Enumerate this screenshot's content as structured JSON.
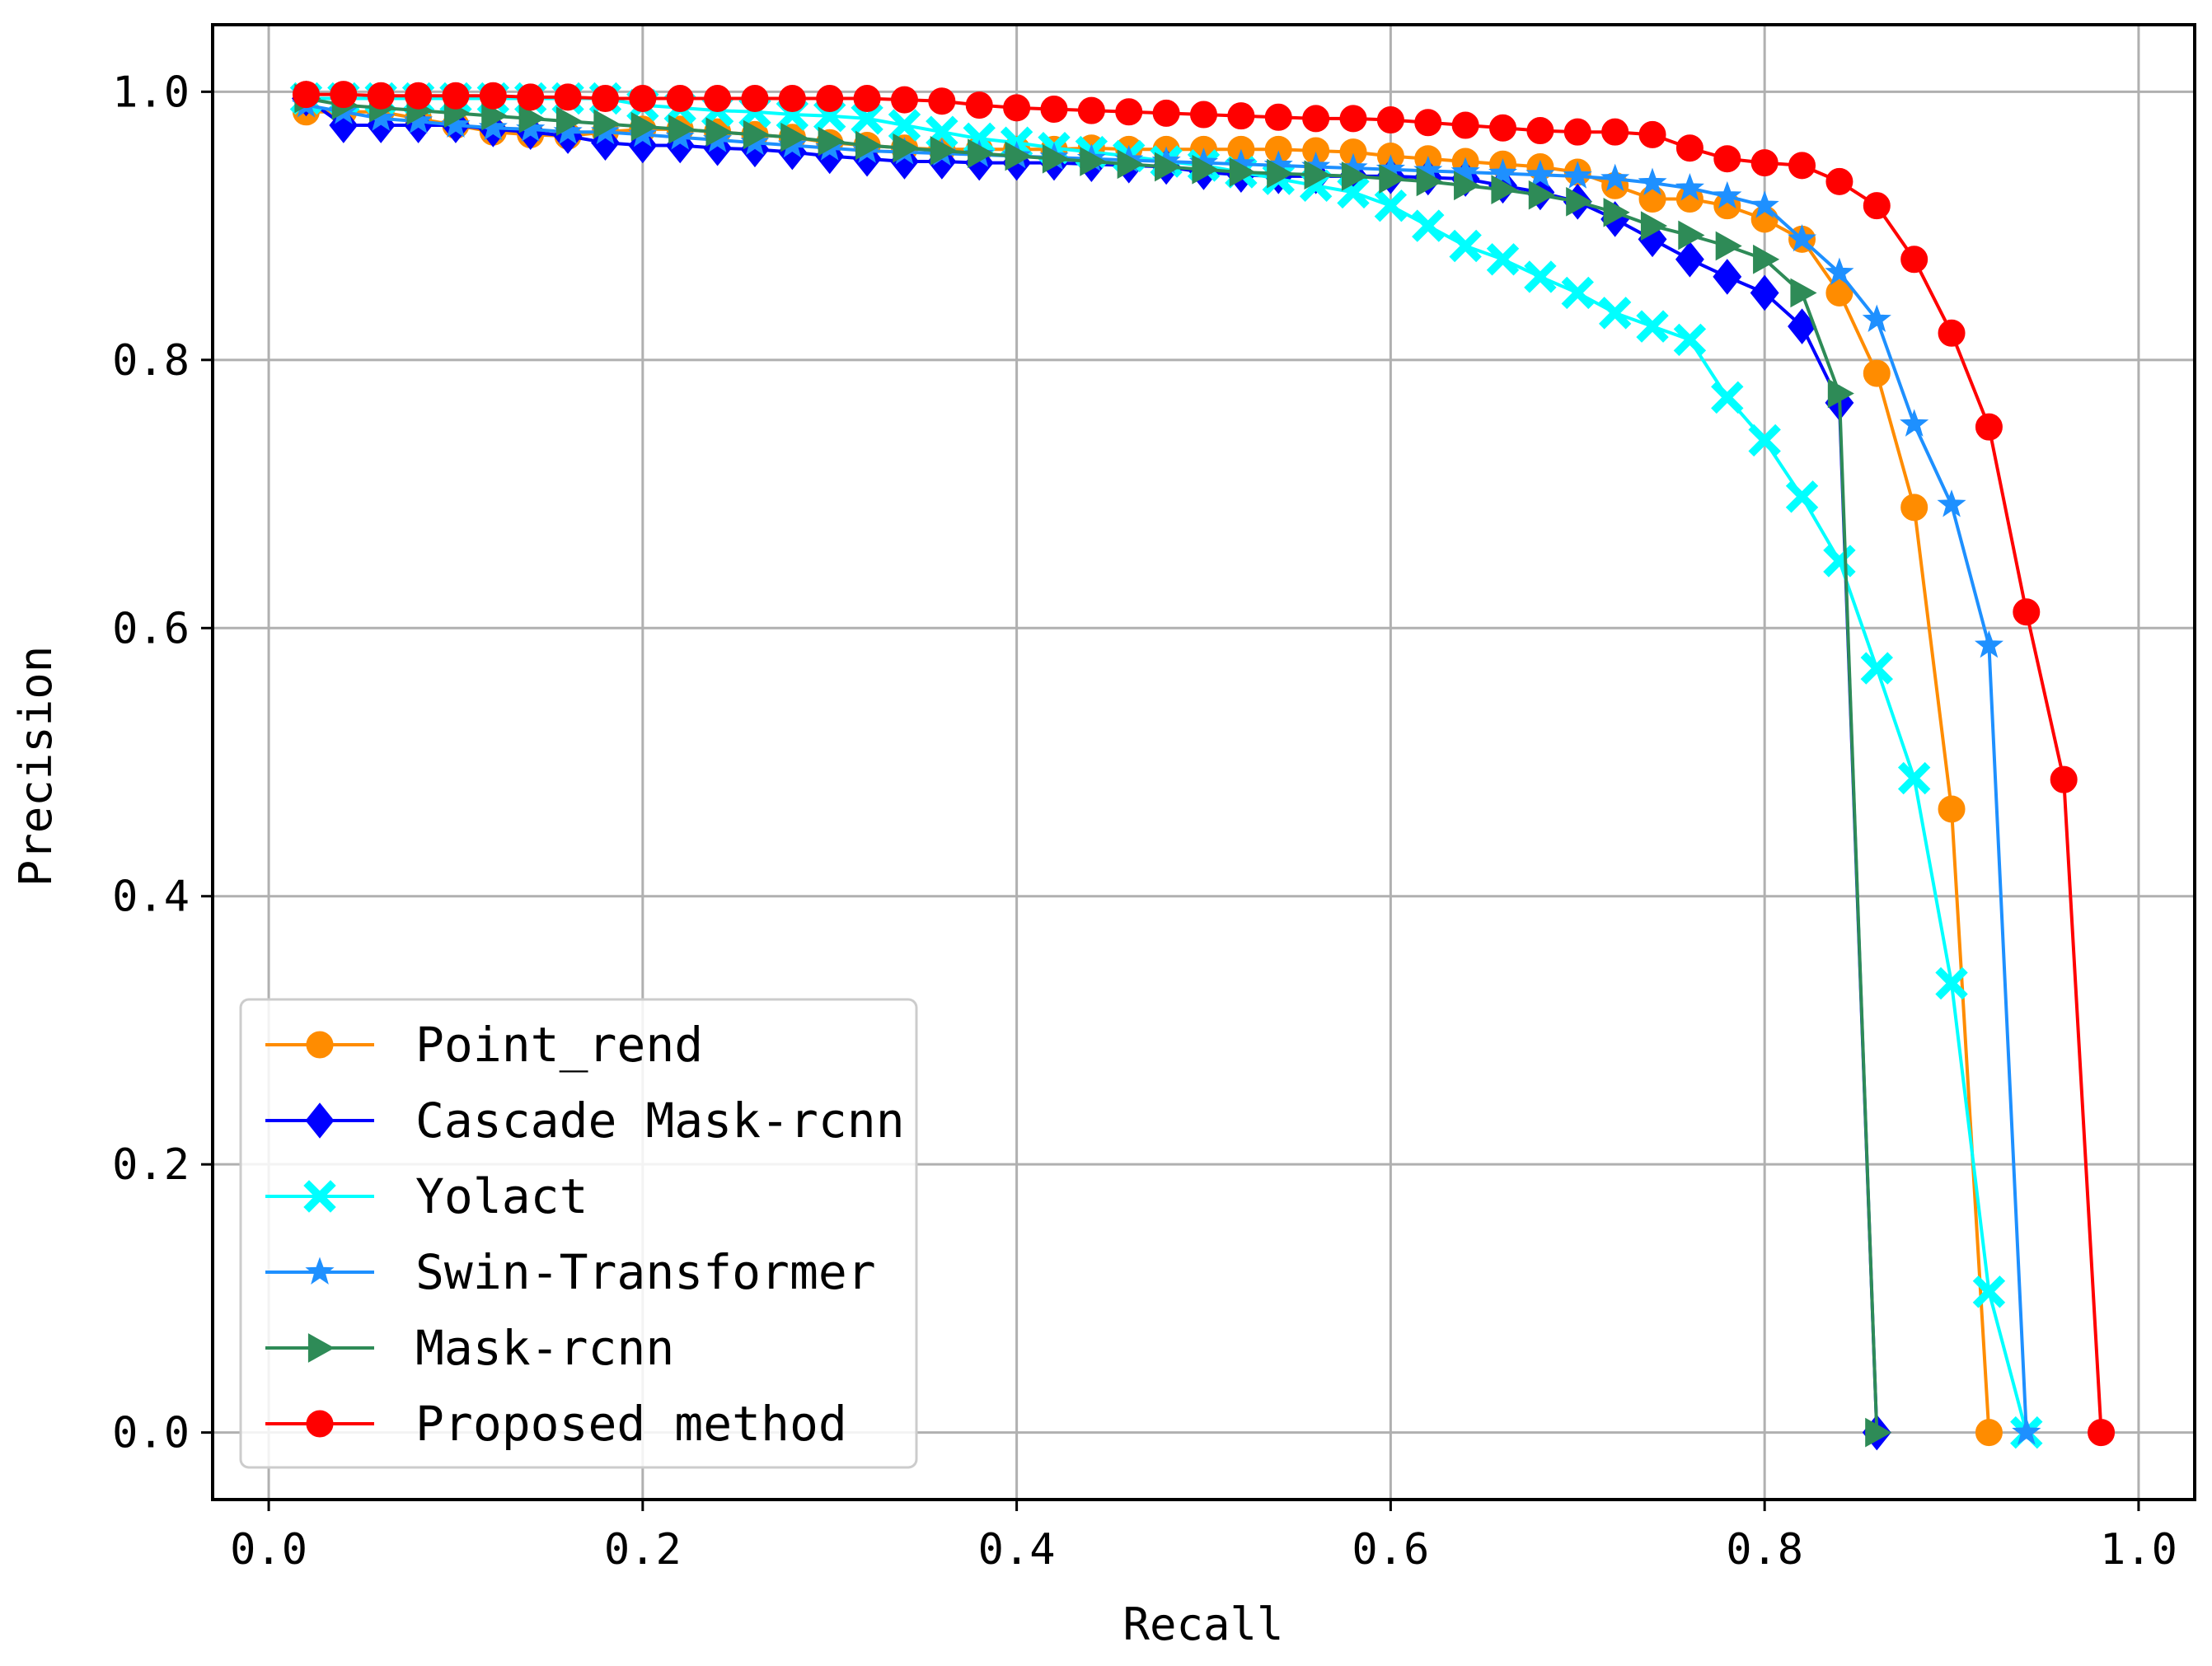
{
  "chart_data": {
    "type": "line",
    "title": "",
    "xlabel": "Recall",
    "ylabel": "Precision",
    "xlim": [
      -0.03,
      1.03
    ],
    "ylim": [
      -0.05,
      1.05
    ],
    "xticks": [
      0.0,
      0.2,
      0.4,
      0.6,
      0.8,
      1.0
    ],
    "yticks": [
      0.0,
      0.2,
      0.4,
      0.6,
      0.8,
      1.0
    ],
    "xtick_labels": [
      "0.0",
      "0.2",
      "0.4",
      "0.6",
      "0.8",
      "1.0"
    ],
    "ytick_labels": [
      "0.0",
      "0.2",
      "0.4",
      "0.6",
      "0.8",
      "1.0"
    ],
    "grid": true,
    "legend_position": "lower-left",
    "series": [
      {
        "name": "Point_rend",
        "color": "#ff8c00",
        "marker": "circle",
        "x": [
          0.02,
          0.04,
          0.06,
          0.08,
          0.1,
          0.12,
          0.14,
          0.16,
          0.18,
          0.2,
          0.22,
          0.24,
          0.26,
          0.28,
          0.3,
          0.32,
          0.34,
          0.36,
          0.38,
          0.4,
          0.42,
          0.44,
          0.46,
          0.48,
          0.5,
          0.52,
          0.54,
          0.56,
          0.58,
          0.6,
          0.62,
          0.64,
          0.66,
          0.68,
          0.7,
          0.72,
          0.74,
          0.76,
          0.78,
          0.8,
          0.82,
          0.84,
          0.86,
          0.88,
          0.9,
          0.92
        ],
        "y": [
          0.985,
          0.985,
          0.985,
          0.98,
          0.975,
          0.97,
          0.968,
          0.967,
          0.97,
          0.972,
          0.972,
          0.97,
          0.968,
          0.966,
          0.962,
          0.96,
          0.958,
          0.957,
          0.957,
          0.957,
          0.957,
          0.958,
          0.957,
          0.957,
          0.957,
          0.957,
          0.957,
          0.956,
          0.955,
          0.952,
          0.95,
          0.948,
          0.946,
          0.944,
          0.94,
          0.93,
          0.92,
          0.92,
          0.915,
          0.905,
          0.89,
          0.85,
          0.79,
          0.69,
          0.465,
          0.0
        ]
      },
      {
        "name": "Cascade Mask-rcnn",
        "color": "#0000ff",
        "marker": "diamond",
        "x": [
          0.02,
          0.04,
          0.06,
          0.08,
          0.1,
          0.12,
          0.14,
          0.16,
          0.18,
          0.2,
          0.22,
          0.24,
          0.26,
          0.28,
          0.3,
          0.32,
          0.34,
          0.36,
          0.38,
          0.4,
          0.42,
          0.44,
          0.46,
          0.48,
          0.5,
          0.52,
          0.54,
          0.56,
          0.58,
          0.6,
          0.62,
          0.64,
          0.66,
          0.68,
          0.7,
          0.72,
          0.74,
          0.76,
          0.78,
          0.8,
          0.82,
          0.84,
          0.86
        ],
        "y": [
          0.995,
          0.975,
          0.975,
          0.975,
          0.975,
          0.972,
          0.97,
          0.967,
          0.962,
          0.96,
          0.96,
          0.958,
          0.957,
          0.955,
          0.952,
          0.95,
          0.948,
          0.948,
          0.947,
          0.947,
          0.947,
          0.946,
          0.945,
          0.944,
          0.94,
          0.938,
          0.937,
          0.937,
          0.937,
          0.937,
          0.936,
          0.935,
          0.93,
          0.925,
          0.918,
          0.905,
          0.89,
          0.875,
          0.862,
          0.85,
          0.825,
          0.768,
          0.0
        ]
      },
      {
        "name": "Yolact",
        "color": "#00ffff",
        "marker": "x",
        "x": [
          0.02,
          0.04,
          0.06,
          0.08,
          0.1,
          0.12,
          0.14,
          0.16,
          0.18,
          0.2,
          0.22,
          0.24,
          0.26,
          0.28,
          0.3,
          0.32,
          0.34,
          0.36,
          0.38,
          0.4,
          0.42,
          0.44,
          0.46,
          0.48,
          0.5,
          0.52,
          0.54,
          0.56,
          0.58,
          0.6,
          0.62,
          0.64,
          0.66,
          0.68,
          0.7,
          0.72,
          0.74,
          0.76,
          0.78,
          0.8,
          0.82,
          0.84,
          0.86,
          0.88,
          0.9,
          0.92,
          0.94
        ],
        "y": [
          0.995,
          0.995,
          0.995,
          0.995,
          0.995,
          0.995,
          0.995,
          0.995,
          0.995,
          0.99,
          0.988,
          0.986,
          0.985,
          0.983,
          0.982,
          0.98,
          0.975,
          0.97,
          0.965,
          0.962,
          0.958,
          0.955,
          0.952,
          0.948,
          0.945,
          0.94,
          0.935,
          0.93,
          0.925,
          0.915,
          0.9,
          0.885,
          0.875,
          0.862,
          0.85,
          0.835,
          0.825,
          0.815,
          0.772,
          0.74,
          0.698,
          0.65,
          0.57,
          0.488,
          0.335,
          0.105,
          0.0
        ]
      },
      {
        "name": "Swin-Transformer",
        "color": "#1e90ff",
        "marker": "star",
        "x": [
          0.02,
          0.04,
          0.06,
          0.08,
          0.1,
          0.12,
          0.14,
          0.16,
          0.18,
          0.2,
          0.22,
          0.24,
          0.26,
          0.28,
          0.3,
          0.32,
          0.34,
          0.36,
          0.38,
          0.4,
          0.42,
          0.44,
          0.46,
          0.48,
          0.5,
          0.52,
          0.54,
          0.56,
          0.58,
          0.6,
          0.62,
          0.64,
          0.66,
          0.68,
          0.7,
          0.72,
          0.74,
          0.76,
          0.78,
          0.8,
          0.82,
          0.84,
          0.86,
          0.88,
          0.9,
          0.92,
          0.94
        ],
        "y": [
          0.99,
          0.985,
          0.98,
          0.978,
          0.975,
          0.973,
          0.972,
          0.97,
          0.97,
          0.968,
          0.966,
          0.964,
          0.962,
          0.96,
          0.958,
          0.956,
          0.955,
          0.954,
          0.953,
          0.952,
          0.951,
          0.95,
          0.949,
          0.948,
          0.947,
          0.946,
          0.945,
          0.944,
          0.943,
          0.942,
          0.941,
          0.94,
          0.939,
          0.938,
          0.937,
          0.935,
          0.932,
          0.928,
          0.922,
          0.915,
          0.89,
          0.865,
          0.83,
          0.752,
          0.692,
          0.587,
          0.0
        ]
      },
      {
        "name": "Mask-rcnn",
        "color": "#2e8b57",
        "marker": "triangle-right",
        "x": [
          0.02,
          0.04,
          0.06,
          0.08,
          0.1,
          0.12,
          0.14,
          0.16,
          0.18,
          0.2,
          0.22,
          0.24,
          0.26,
          0.28,
          0.3,
          0.32,
          0.34,
          0.36,
          0.38,
          0.4,
          0.42,
          0.44,
          0.46,
          0.48,
          0.5,
          0.52,
          0.54,
          0.56,
          0.58,
          0.6,
          0.62,
          0.64,
          0.66,
          0.68,
          0.7,
          0.72,
          0.74,
          0.76,
          0.78,
          0.8,
          0.82,
          0.84,
          0.86
        ],
        "y": [
          0.995,
          0.99,
          0.988,
          0.986,
          0.984,
          0.982,
          0.98,
          0.978,
          0.976,
          0.974,
          0.972,
          0.97,
          0.968,
          0.966,
          0.963,
          0.96,
          0.958,
          0.956,
          0.954,
          0.952,
          0.95,
          0.948,
          0.946,
          0.944,
          0.942,
          0.94,
          0.939,
          0.938,
          0.937,
          0.935,
          0.933,
          0.93,
          0.927,
          0.923,
          0.918,
          0.91,
          0.9,
          0.893,
          0.885,
          0.875,
          0.85,
          0.775,
          0.0
        ]
      },
      {
        "name": "Proposed method",
        "color": "#ff0000",
        "marker": "circle",
        "x": [
          0.02,
          0.04,
          0.06,
          0.08,
          0.1,
          0.12,
          0.14,
          0.16,
          0.18,
          0.2,
          0.22,
          0.24,
          0.26,
          0.28,
          0.3,
          0.32,
          0.34,
          0.36,
          0.38,
          0.4,
          0.42,
          0.44,
          0.46,
          0.48,
          0.5,
          0.52,
          0.54,
          0.56,
          0.58,
          0.6,
          0.62,
          0.64,
          0.66,
          0.68,
          0.7,
          0.72,
          0.74,
          0.76,
          0.78,
          0.8,
          0.82,
          0.84,
          0.86,
          0.88,
          0.9,
          0.92,
          0.94,
          0.96,
          0.98
        ],
        "y": [
          0.998,
          0.998,
          0.997,
          0.997,
          0.997,
          0.997,
          0.996,
          0.996,
          0.995,
          0.995,
          0.995,
          0.995,
          0.995,
          0.995,
          0.995,
          0.995,
          0.994,
          0.993,
          0.99,
          0.988,
          0.987,
          0.986,
          0.985,
          0.984,
          0.983,
          0.982,
          0.981,
          0.98,
          0.98,
          0.979,
          0.977,
          0.975,
          0.973,
          0.971,
          0.97,
          0.97,
          0.968,
          0.958,
          0.95,
          0.947,
          0.945,
          0.933,
          0.915,
          0.875,
          0.82,
          0.75,
          0.612,
          0.487,
          0.0
        ]
      }
    ]
  }
}
